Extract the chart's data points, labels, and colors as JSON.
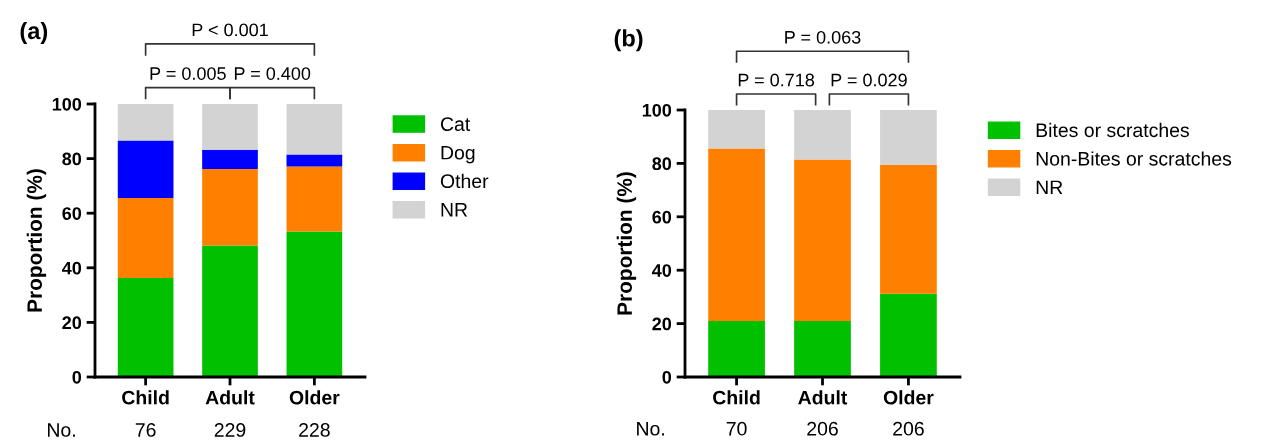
{
  "chart_data": [
    {
      "type": "bar",
      "title": "(a)",
      "ylabel": "Proportion (%)",
      "categories": [
        "Child",
        "Adult",
        "Older"
      ],
      "stacked": true,
      "ylim": [
        0,
        100
      ],
      "yticks": [
        0,
        20,
        40,
        60,
        80,
        100
      ],
      "legend": "right",
      "grid": false,
      "series": [
        {
          "name": "Cat",
          "color": "#00c000",
          "values": [
            36.3,
            48.2,
            53.3
          ]
        },
        {
          "name": "Dog",
          "color": "#ff8000",
          "values": [
            29.3,
            28.0,
            23.8
          ]
        },
        {
          "name": "Other",
          "color": "#0000ff",
          "values": [
            21.0,
            7.0,
            4.4
          ]
        },
        {
          "name": "NR",
          "color": "#d3d3d3",
          "values": [
            13.4,
            16.8,
            18.5
          ]
        }
      ],
      "annotations": [
        "P < 0.001",
        "P = 0.005",
        "P = 0.400",
        "No.",
        "76",
        "229",
        "228"
      ]
    },
    {
      "type": "bar",
      "title": "(b)",
      "ylabel": "Proportion (%)",
      "categories": [
        "Child",
        "Adult",
        "Older"
      ],
      "stacked": true,
      "ylim": [
        0,
        100
      ],
      "yticks": [
        0,
        20,
        40,
        60,
        80,
        100
      ],
      "legend": "right",
      "grid": false,
      "series": [
        {
          "name": "Bites or scratches",
          "color": "#00c000",
          "values": [
            21.0,
            21.0,
            31.2
          ]
        },
        {
          "name": "Non-Bites or scratches",
          "color": "#ff8000",
          "values": [
            64.6,
            60.5,
            48.3
          ]
        },
        {
          "name": "NR",
          "color": "#d3d3d3",
          "values": [
            14.4,
            18.5,
            20.5
          ]
        }
      ],
      "annotations": [
        "P = 0.063",
        "P = 0.718",
        "P = 0.029",
        "No.",
        "70",
        "206",
        "206"
      ]
    }
  ]
}
